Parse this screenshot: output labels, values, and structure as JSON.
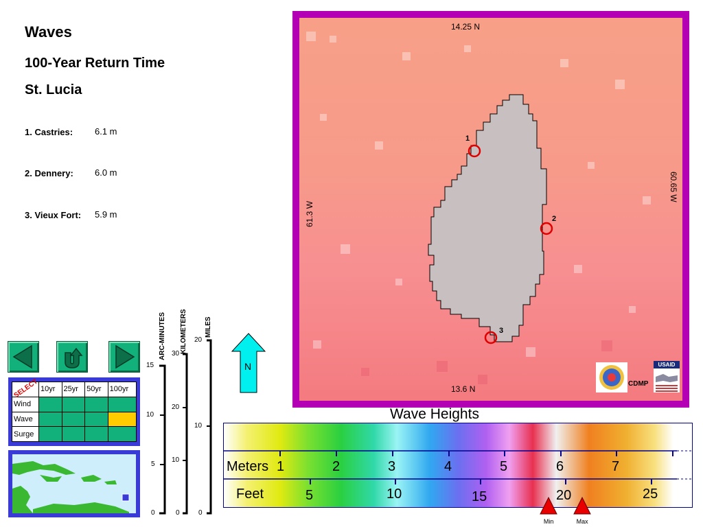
{
  "header": {
    "title": "Waves",
    "subtitle": "100-Year Return Time",
    "location": "St. Lucia"
  },
  "stations": [
    {
      "label": "1. Castries:",
      "value": "6.1 m"
    },
    {
      "label": "2. Dennery:",
      "value": "6.0 m"
    },
    {
      "label": "3. Vieux Fort:",
      "value": "5.9 m"
    }
  ],
  "select_panel": {
    "corner_label": "SELECT",
    "columns": [
      "10yr",
      "25yr",
      "50yr",
      "100yr"
    ],
    "rows": [
      "Wind",
      "Wave",
      "Surge"
    ],
    "selected": {
      "row": "Wave",
      "column": "100yr"
    },
    "selected_color": "#ffcc00",
    "cell_color": "#12b07a"
  },
  "scales": {
    "arc_minutes": {
      "label": "ARC-MINUTES",
      "ticks": [
        "15",
        "10",
        "5",
        "0"
      ]
    },
    "kilometers": {
      "label": "KILOMETERS",
      "ticks": [
        "30",
        "20",
        "10",
        "0"
      ]
    },
    "miles": {
      "label": "MILES",
      "ticks": [
        "20",
        "10",
        "0"
      ]
    }
  },
  "north_arrow": {
    "label": "N",
    "color": "#00f0f0"
  },
  "map": {
    "top_lat": "14.25 N",
    "bottom_lat": "13.6 N",
    "left_lon": "61.3 W",
    "right_lon": "60.65 W",
    "frame_color": "#b400b4",
    "land_color": "#c8c0c0",
    "markers": [
      {
        "id": "1"
      },
      {
        "id": "2"
      },
      {
        "id": "3"
      }
    ],
    "logo_text": "CDMP",
    "usaid_text": "USAID"
  },
  "legend": {
    "title": "Wave Heights",
    "meters_label": "Meters",
    "meters_ticks": [
      "1",
      "2",
      "3",
      "4",
      "5",
      "6",
      "7"
    ],
    "feet_label": "Feet",
    "feet_ticks": [
      "5",
      "10",
      "15",
      "20",
      "25"
    ],
    "min_label": "Min",
    "max_label": "Max",
    "min_meters": 5.8,
    "max_meters": 6.4
  }
}
